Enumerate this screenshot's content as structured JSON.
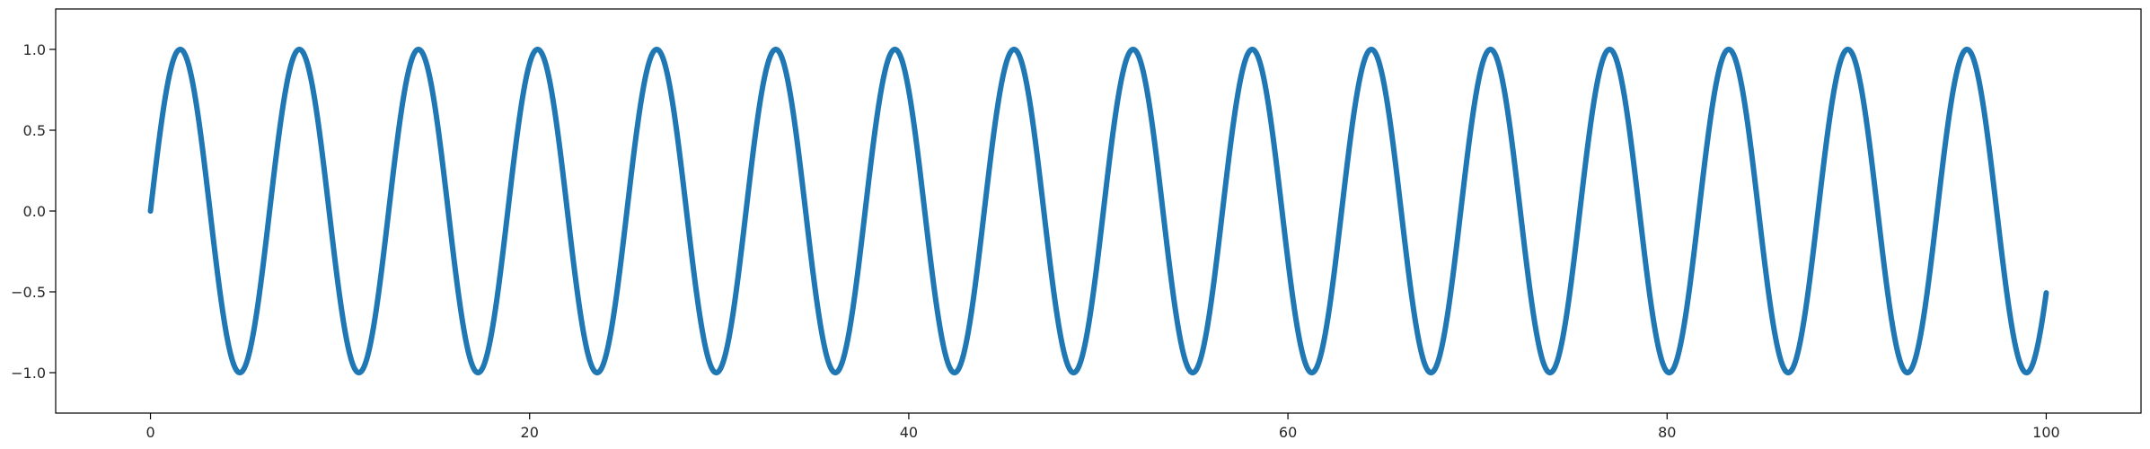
{
  "chart_data": {
    "type": "line",
    "title": "",
    "xlabel": "",
    "ylabel": "",
    "xlim": [
      -5,
      105
    ],
    "ylim": [
      -1.25,
      1.25
    ],
    "grid": false,
    "x_ticks": [
      0,
      20,
      40,
      60,
      80,
      100
    ],
    "y_ticks": [
      -1.0,
      -0.5,
      0.0,
      0.5,
      1.0
    ],
    "x_tick_labels": [
      "0",
      "20",
      "40",
      "60",
      "80",
      "100"
    ],
    "y_tick_labels": [
      "−1.0",
      "−0.5",
      "0.0",
      "0.5",
      "1.0"
    ],
    "series": [
      {
        "function": "sin(x)",
        "x_range": [
          0,
          100
        ],
        "color": "#1f77b4"
      }
    ]
  }
}
